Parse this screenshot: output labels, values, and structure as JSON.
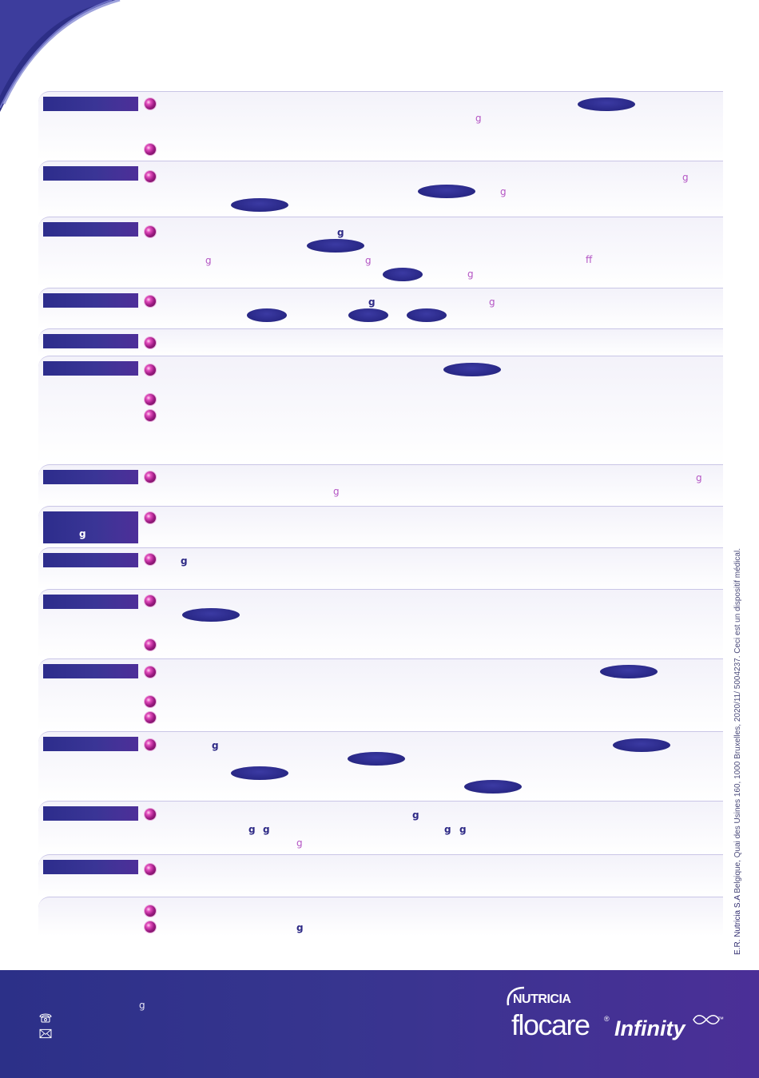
{
  "glyphs": {
    "g": "g",
    "ff": "ff"
  },
  "vertical_note": {
    "strong": "E.R. Nutricia S.A",
    "rest": " Belgique, Quai des Usines 160, 1000 Bruxelles, 2020/11/ 5004237. Ceci est un dispositif médical."
  },
  "logo": {
    "brand": "NUTRICIA",
    "product": "flocare",
    "registered": "®",
    "line": "Infinity",
    "trademark": "™"
  },
  "footer": {
    "icons": [
      "phone-icon",
      "mail-icon"
    ]
  },
  "colors": {
    "label_box": "#3a3596",
    "pill": "#2b2a8a",
    "bullet": "#c0279f",
    "glyph": "#b455c4",
    "footer": "#37358f"
  }
}
